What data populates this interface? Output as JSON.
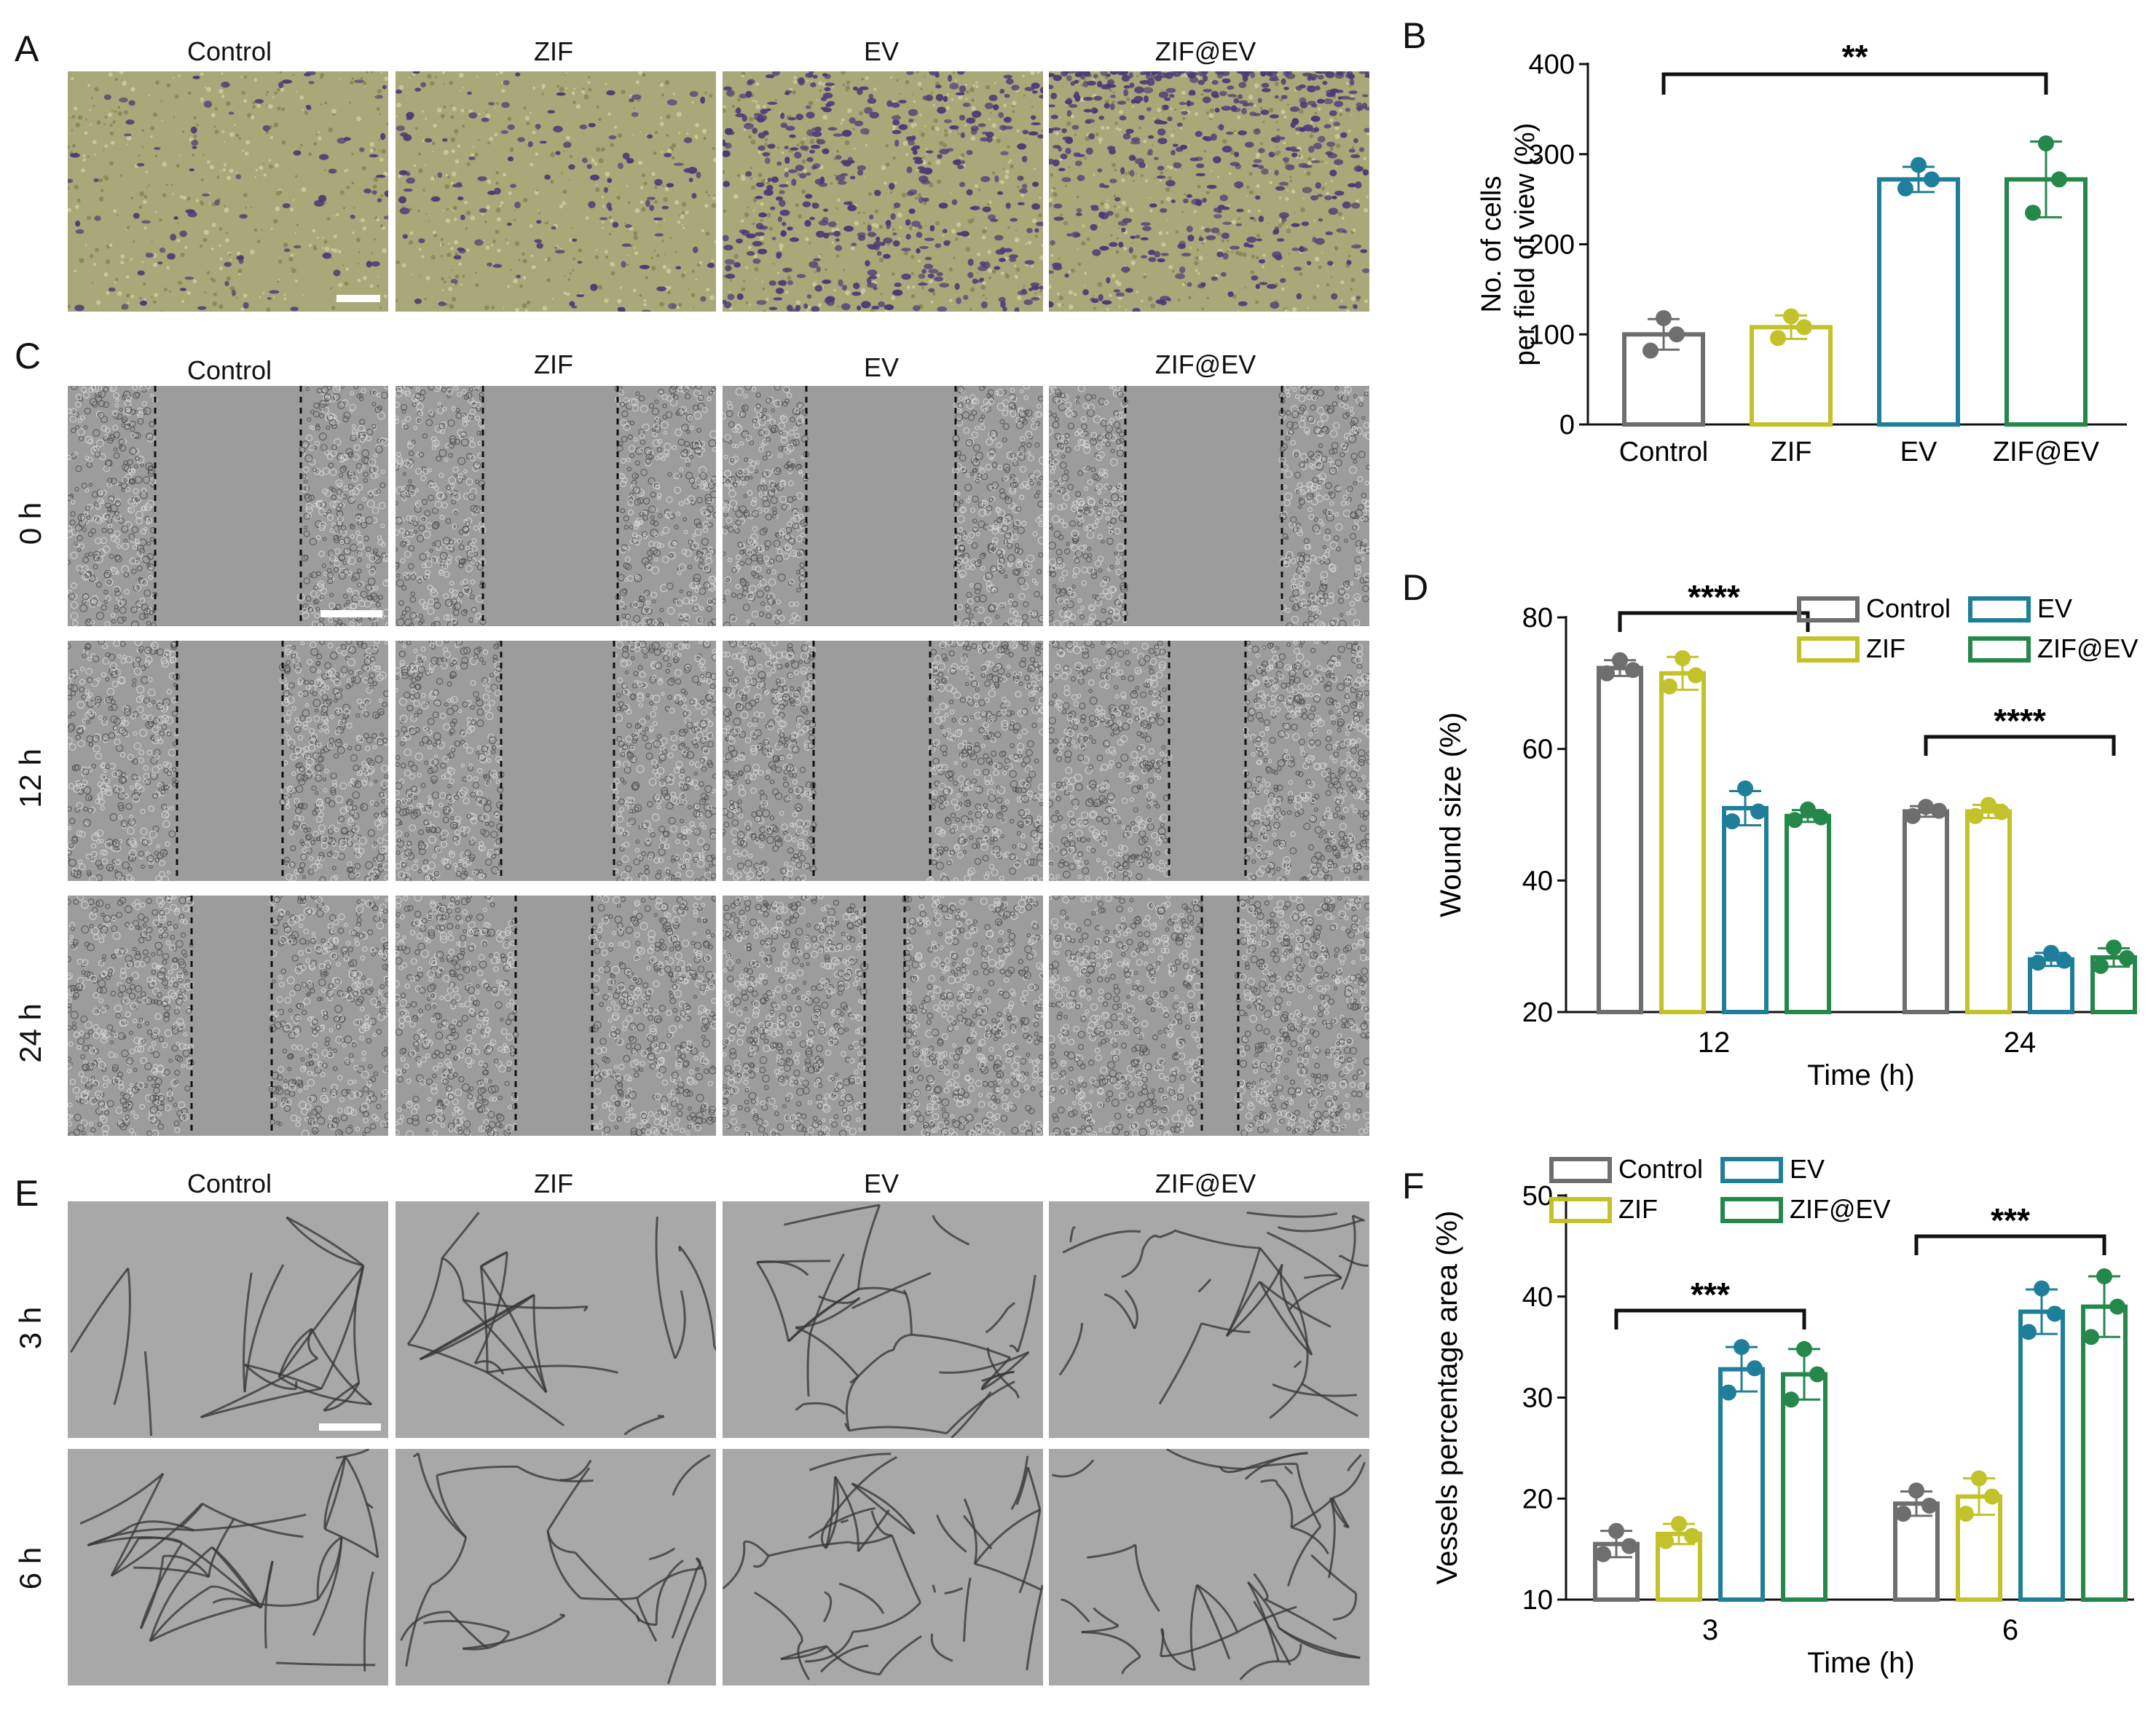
{
  "panels": {
    "A": {
      "letter": "A",
      "columns": [
        "Control",
        "ZIF",
        "EV",
        "ZIF@EV"
      ]
    },
    "C": {
      "letter": "C",
      "columns": [
        "Control",
        "ZIF",
        "EV",
        "ZIF@EV"
      ],
      "rows": [
        "0 h",
        "12 h",
        "24 h"
      ]
    },
    "E": {
      "letter": "E",
      "columns": [
        "Control",
        "ZIF",
        "EV",
        "ZIF@EV"
      ],
      "rows": [
        "3 h",
        "6 h"
      ]
    },
    "B": {
      "letter": "B"
    },
    "D": {
      "letter": "D"
    },
    "F": {
      "letter": "F"
    }
  },
  "colors": {
    "Control": "#6e6e6e",
    "ZIF": "#c2c22a",
    "EV": "#1f7f9a",
    "ZIF@EV": "#24884a"
  },
  "chart_data": [
    {
      "id": "B",
      "type": "bar",
      "xlabel": "",
      "ylabel": "No. of cells per field of view (%)",
      "ylabel_lines": [
        "No. of cells",
        "per field of view (%)"
      ],
      "ylim": [
        0,
        400
      ],
      "yticks": [
        0,
        100,
        200,
        300,
        400
      ],
      "categories": [
        "Control",
        "ZIF",
        "EV",
        "ZIF@EV"
      ],
      "values": [
        100,
        108,
        272,
        272
      ],
      "errors": [
        17,
        13,
        14,
        42
      ],
      "points": [
        [
          118,
          82,
          100
        ],
        [
          120,
          96,
          108
        ],
        [
          288,
          262,
          272
        ],
        [
          312,
          235,
          272
        ]
      ],
      "significance": [
        {
          "from": "Control",
          "to": "ZIF@EV",
          "label": "**"
        }
      ]
    },
    {
      "id": "D",
      "type": "bar",
      "xlabel": "Time (h)",
      "ylabel": "Wound size (%)",
      "ylim": [
        20,
        80
      ],
      "yticks": [
        20,
        40,
        60,
        80
      ],
      "categories": [
        "12",
        "24"
      ],
      "series": [
        {
          "name": "Control",
          "values": [
            72.3,
            50.5
          ],
          "errors": [
            1.2,
            0.8
          ],
          "points": [
            [
              73.5,
              71.5,
              72.0
            ],
            [
              51.2,
              49.8,
              50.6
            ]
          ]
        },
        {
          "name": "ZIF",
          "values": [
            71.5,
            50.5
          ],
          "errors": [
            2.5,
            1.0
          ],
          "points": [
            [
              73.8,
              69.5,
              71.2
            ],
            [
              51.5,
              49.8,
              50.4
            ]
          ]
        },
        {
          "name": "EV",
          "values": [
            51.0,
            28.0
          ],
          "errors": [
            2.6,
            1.0
          ],
          "points": [
            [
              54.0,
              49.0,
              50.5
            ],
            [
              29.0,
              27.5,
              27.8
            ]
          ]
        },
        {
          "name": "ZIF@EV",
          "values": [
            49.8,
            28.3
          ],
          "errors": [
            0.9,
            1.4
          ],
          "points": [
            [
              50.8,
              49.2,
              49.6
            ],
            [
              29.8,
              27.0,
              28.2
            ]
          ]
        }
      ],
      "legend": "top-right",
      "significance": [
        {
          "group": "12",
          "label": "****"
        },
        {
          "group": "24",
          "label": "****"
        }
      ]
    },
    {
      "id": "F",
      "type": "bar",
      "xlabel": "Time (h)",
      "ylabel": "Vessels percentage area (%)",
      "ylim": [
        10,
        50
      ],
      "yticks": [
        10,
        20,
        30,
        40,
        50
      ],
      "categories": [
        "3",
        "6"
      ],
      "series": [
        {
          "name": "Control",
          "values": [
            15.5,
            19.5
          ],
          "errors": [
            1.3,
            1.2
          ],
          "points": [
            [
              16.8,
              14.5,
              15.3
            ],
            [
              20.8,
              18.5,
              19.3
            ]
          ]
        },
        {
          "name": "ZIF",
          "values": [
            16.5,
            20.2
          ],
          "errors": [
            1.0,
            1.8
          ],
          "points": [
            [
              17.5,
              15.8,
              16.3
            ],
            [
              22.0,
              18.5,
              20.2
            ]
          ]
        },
        {
          "name": "EV",
          "values": [
            32.8,
            38.5
          ],
          "errors": [
            2.2,
            2.2
          ],
          "points": [
            [
              35.0,
              30.5,
              32.9
            ],
            [
              40.8,
              36.5,
              38.3
            ]
          ]
        },
        {
          "name": "ZIF@EV",
          "values": [
            32.3,
            39.0
          ],
          "errors": [
            2.5,
            3.0
          ],
          "points": [
            [
              34.8,
              29.8,
              32.3
            ],
            [
              42.0,
              36.0,
              39.0
            ]
          ]
        }
      ],
      "legend": "top-left",
      "significance": [
        {
          "group": "3",
          "label": "***"
        },
        {
          "group": "6",
          "label": "***"
        }
      ]
    }
  ]
}
